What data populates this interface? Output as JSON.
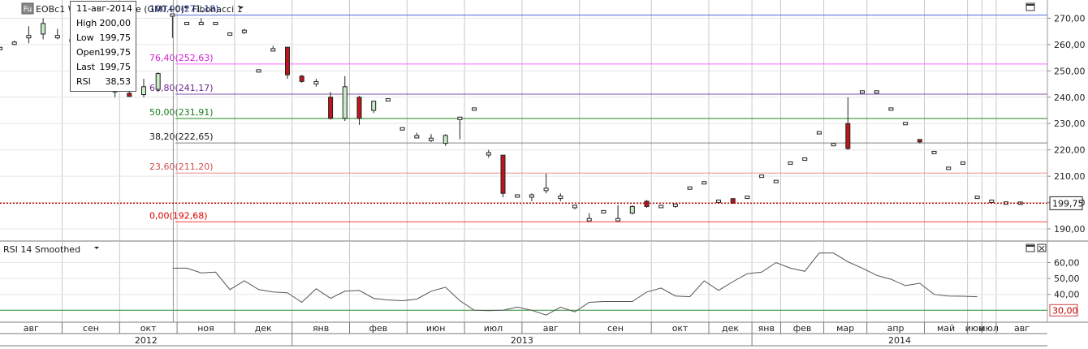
{
  "header": {
    "instrument_badge": "Fu",
    "instrument_text": "EOBc1 W",
    "tz_text": "e (GMT+0)",
    "study_label": "Fibonacci 1",
    "rsi_label": "RSI 14 Smoothed"
  },
  "tooltip": {
    "date": "11-авг-2014",
    "rows": [
      {
        "label": "High",
        "value": "200,00"
      },
      {
        "label": "Low",
        "value": "199,75"
      },
      {
        "label": "Open",
        "value": "199,75"
      },
      {
        "label": "Last",
        "value": "199,75"
      },
      {
        "label": "RSI",
        "value": "38,53"
      }
    ]
  },
  "colors": {
    "up": "#c8ecc8",
    "down": "#c0141c",
    "flat": "#ffffff",
    "grid": "#c8c8c8",
    "current": "#c00000",
    "rsi_line": "#555555",
    "rsi_level": "#2e8b2e"
  },
  "chart_data": [
    {
      "type": "candlestick",
      "y_ticks": [
        "270,00",
        "260,00",
        "250,00",
        "240,00",
        "230,00",
        "220,00",
        "210,00",
        "200,00",
        "190,00"
      ],
      "ylim": [
        186,
        276
      ],
      "current_price": {
        "value": 199.75,
        "label": "199,75"
      },
      "fibonacci_levels": [
        {
          "label": "100,00(271,18)",
          "value": 271.18,
          "color": "#4f6ad0",
          "text_color": "#1a2aa0"
        },
        {
          "label": "76,40(252,63)",
          "value": 252.63,
          "color": "#ff66ff",
          "text_color": "#d020d0"
        },
        {
          "label": "61,80(241,17)",
          "value": 241.17,
          "color": "#8050a8",
          "text_color": "#6a2a90"
        },
        {
          "label": "50,00(231,91)",
          "value": 231.91,
          "color": "#1a8a1a",
          "text_color": "#1a7a1a"
        },
        {
          "label": "38,20(222,65)",
          "value": 222.65,
          "color": "#808080",
          "text_color": "#202020"
        },
        {
          "label": "23,60(211,20)",
          "value": 211.2,
          "color": "#f08a8a",
          "text_color": "#d05050"
        },
        {
          "label": "0,00(192,68)",
          "value": 192.68,
          "color": "#ff4040",
          "text_color": "#e00000"
        }
      ],
      "candles": [
        {
          "o": 258.5,
          "h": 258.5,
          "l": 258.5,
          "c": 258.5
        },
        {
          "o": 260.5,
          "h": 261.5,
          "l": 259.8,
          "c": 260.5
        },
        {
          "o": 263.0,
          "h": 267.0,
          "l": 260.5,
          "c": 263.0
        },
        {
          "o": 264.0,
          "h": 270.0,
          "l": 262.0,
          "c": 268.0
        },
        {
          "o": 263.0,
          "h": 266.0,
          "l": 262.0,
          "c": 263.0
        },
        {
          "o": 261.5,
          "h": 263.5,
          "l": 259.8,
          "c": 261.5
        },
        {
          "o": 259.0,
          "h": 261.0,
          "l": 258.0,
          "c": 259.0
        },
        {
          "o": 255.0,
          "h": 256.0,
          "l": 254.0,
          "c": 255.0
        },
        {
          "o": 245.0,
          "h": 245.5,
          "l": 240.0,
          "c": 242.0
        },
        {
          "o": 241.5,
          "h": 243.0,
          "l": 240.5,
          "c": 240.3
        },
        {
          "o": 241.0,
          "h": 247.0,
          "l": 240.0,
          "c": 244.0
        },
        {
          "o": 243.0,
          "h": 249.5,
          "l": 242.0,
          "c": 249.0
        },
        {
          "o": 271.2,
          "h": 271.2,
          "l": 262.5,
          "c": 271.2
        },
        {
          "o": 268.0,
          "h": 268.5,
          "l": 267.5,
          "c": 268.0
        },
        {
          "o": 268.0,
          "h": 270.0,
          "l": 267.5,
          "c": 268.0
        },
        {
          "o": 268.0,
          "h": 268.5,
          "l": 267.5,
          "c": 268.0
        },
        {
          "o": 264.0,
          "h": 264.5,
          "l": 263.5,
          "c": 264.0
        },
        {
          "o": 265.0,
          "h": 266.0,
          "l": 264.0,
          "c": 265.0
        },
        {
          "o": 250.0,
          "h": 250.5,
          "l": 249.5,
          "c": 250.0
        },
        {
          "o": 258.0,
          "h": 259.5,
          "l": 257.5,
          "c": 258.0
        },
        {
          "o": 259.0,
          "h": 259.0,
          "l": 247.0,
          "c": 248.5
        },
        {
          "o": 248.0,
          "h": 248.5,
          "l": 245.5,
          "c": 246.0
        },
        {
          "o": 245.5,
          "h": 247.0,
          "l": 244.0,
          "c": 245.5
        },
        {
          "o": 240.0,
          "h": 242.0,
          "l": 231.5,
          "c": 232.0
        },
        {
          "o": 232.0,
          "h": 248.0,
          "l": 231.0,
          "c": 244.0
        },
        {
          "o": 240.0,
          "h": 240.5,
          "l": 229.5,
          "c": 232.0
        },
        {
          "o": 235.0,
          "h": 238.5,
          "l": 234.0,
          "c": 238.5
        },
        {
          "o": 239.0,
          "h": 239.5,
          "l": 238.5,
          "c": 239.0
        },
        {
          "o": 228.0,
          "h": 228.5,
          "l": 227.5,
          "c": 228.0
        },
        {
          "o": 225.0,
          "h": 226.5,
          "l": 224.5,
          "c": 225.0
        },
        {
          "o": 224.0,
          "h": 226.0,
          "l": 223.0,
          "c": 224.0
        },
        {
          "o": 222.5,
          "h": 226.0,
          "l": 221.5,
          "c": 225.5
        },
        {
          "o": 232.0,
          "h": 232.5,
          "l": 224.0,
          "c": 232.0
        },
        {
          "o": 235.5,
          "h": 236.0,
          "l": 235.0,
          "c": 235.5
        },
        {
          "o": 218.5,
          "h": 220.0,
          "l": 217.0,
          "c": 218.5
        },
        {
          "o": 218.0,
          "h": 218.0,
          "l": 202.0,
          "c": 203.5
        },
        {
          "o": 202.5,
          "h": 203.0,
          "l": 202.0,
          "c": 202.5
        },
        {
          "o": 202.5,
          "h": 203.5,
          "l": 200.5,
          "c": 202.5
        },
        {
          "o": 205.0,
          "h": 211.0,
          "l": 203.5,
          "c": 205.0
        },
        {
          "o": 202.0,
          "h": 203.5,
          "l": 200.5,
          "c": 202.0
        },
        {
          "o": 198.5,
          "h": 199.0,
          "l": 197.5,
          "c": 198.5
        },
        {
          "o": 193.5,
          "h": 196.0,
          "l": 193.0,
          "c": 193.5
        },
        {
          "o": 196.5,
          "h": 197.0,
          "l": 196.0,
          "c": 196.5
        },
        {
          "o": 193.5,
          "h": 199.0,
          "l": 193.0,
          "c": 193.5
        },
        {
          "o": 196.0,
          "h": 199.0,
          "l": 195.5,
          "c": 198.5
        },
        {
          "o": 200.5,
          "h": 201.0,
          "l": 198.0,
          "c": 198.5
        },
        {
          "o": 198.5,
          "h": 199.0,
          "l": 198.0,
          "c": 198.5
        },
        {
          "o": 199.0,
          "h": 199.5,
          "l": 198.0,
          "c": 199.0
        },
        {
          "o": 205.5,
          "h": 206.0,
          "l": 205.0,
          "c": 205.5
        },
        {
          "o": 207.5,
          "h": 208.0,
          "l": 207.0,
          "c": 207.5
        },
        {
          "o": 200.5,
          "h": 201.0,
          "l": 200.0,
          "c": 200.5
        },
        {
          "o": 201.5,
          "h": 201.5,
          "l": 199.5,
          "c": 199.8
        },
        {
          "o": 202.0,
          "h": 202.5,
          "l": 201.5,
          "c": 202.0
        },
        {
          "o": 210.0,
          "h": 210.5,
          "l": 209.5,
          "c": 210.0
        },
        {
          "o": 208.0,
          "h": 208.5,
          "l": 207.5,
          "c": 208.0
        },
        {
          "o": 215.0,
          "h": 215.5,
          "l": 214.5,
          "c": 215.0
        },
        {
          "o": 216.5,
          "h": 217.0,
          "l": 216.0,
          "c": 216.5
        },
        {
          "o": 226.5,
          "h": 227.0,
          "l": 226.0,
          "c": 226.5
        },
        {
          "o": 222.0,
          "h": 222.5,
          "l": 221.5,
          "c": 222.0
        },
        {
          "o": 230.0,
          "h": 240.0,
          "l": 220.0,
          "c": 220.5
        },
        {
          "o": 242.0,
          "h": 242.5,
          "l": 241.5,
          "c": 242.0
        },
        {
          "o": 242.0,
          "h": 242.5,
          "l": 241.5,
          "c": 242.0
        },
        {
          "o": 235.5,
          "h": 236.0,
          "l": 235.0,
          "c": 235.5
        },
        {
          "o": 230.0,
          "h": 230.5,
          "l": 229.5,
          "c": 230.0
        },
        {
          "o": 223.5,
          "h": 224.0,
          "l": 222.5,
          "c": 223.0
        },
        {
          "o": 219.0,
          "h": 219.5,
          "l": 218.5,
          "c": 219.0
        },
        {
          "o": 213.0,
          "h": 213.5,
          "l": 212.5,
          "c": 213.0
        },
        {
          "o": 215.0,
          "h": 215.5,
          "l": 214.5,
          "c": 215.0
        },
        {
          "o": 202.0,
          "h": 202.5,
          "l": 201.5,
          "c": 202.0
        },
        {
          "o": 200.5,
          "h": 201.0,
          "l": 200.0,
          "c": 200.5
        },
        {
          "o": 199.8,
          "h": 200.0,
          "l": 199.5,
          "c": 199.8
        },
        {
          "o": 199.75,
          "h": 200.0,
          "l": 199.75,
          "c": 199.75
        }
      ]
    },
    {
      "type": "line",
      "name": "RSI 14 Smoothed",
      "y_ticks": [
        "60,00",
        "50,00",
        "40,00"
      ],
      "ylim": [
        23,
        72
      ],
      "level": {
        "value": 30,
        "label": "30,00"
      },
      "start_index": 12,
      "values": [
        56.5,
        56.5,
        53.5,
        54.0,
        43.0,
        48.5,
        43.0,
        41.5,
        41.0,
        35.0,
        43.5,
        37.5,
        42.0,
        42.5,
        37.5,
        36.5,
        36.0,
        37.0,
        42.0,
        44.5,
        36.0,
        30.0,
        29.8,
        30.0,
        32.0,
        30.0,
        27.0,
        32.0,
        29.0,
        35.0,
        35.5,
        35.5,
        35.5,
        41.5,
        44.0,
        39.0,
        38.5,
        48.5,
        42.5,
        48.0,
        53.0,
        54.0,
        60.0,
        56.5,
        54.5,
        66.0,
        66.0,
        60.5,
        56.5,
        52.0,
        49.5,
        45.5,
        47.0,
        40.0,
        39.0,
        38.8,
        38.53
      ]
    }
  ],
  "time_axis": {
    "months": [
      {
        "label": "авг",
        "i": 0
      },
      {
        "label": "сен",
        "i": 5
      },
      {
        "label": "окт",
        "i": 9
      },
      {
        "label": "ноя",
        "i": 13
      },
      {
        "label": "дек",
        "i": 17
      },
      {
        "label": "янв",
        "i": 21
      },
      {
        "label": "фев",
        "i": 25
      },
      {
        "label": "июн",
        "i": 29
      },
      {
        "label": "июл",
        "i": 33
      },
      {
        "label": "авг",
        "i": 37
      },
      {
        "label": "сен",
        "i": 41
      },
      {
        "label": "окт",
        "i": 46
      },
      {
        "label": "дек",
        "i": 50
      },
      {
        "label": "янв",
        "i": 53
      },
      {
        "label": "фев",
        "i": 55
      },
      {
        "label": "мар",
        "i": 58
      },
      {
        "label": "апр",
        "i": 61
      },
      {
        "label": "май",
        "i": 65
      },
      {
        "label": "июн",
        "i": 68
      },
      {
        "label": "июл",
        "i": 69
      },
      {
        "label": "авг",
        "i": 70
      }
    ],
    "years": [
      {
        "label": "2012",
        "i": 9
      },
      {
        "label": "2013",
        "i": 33
      },
      {
        "label": "2014",
        "i": 61
      }
    ]
  }
}
